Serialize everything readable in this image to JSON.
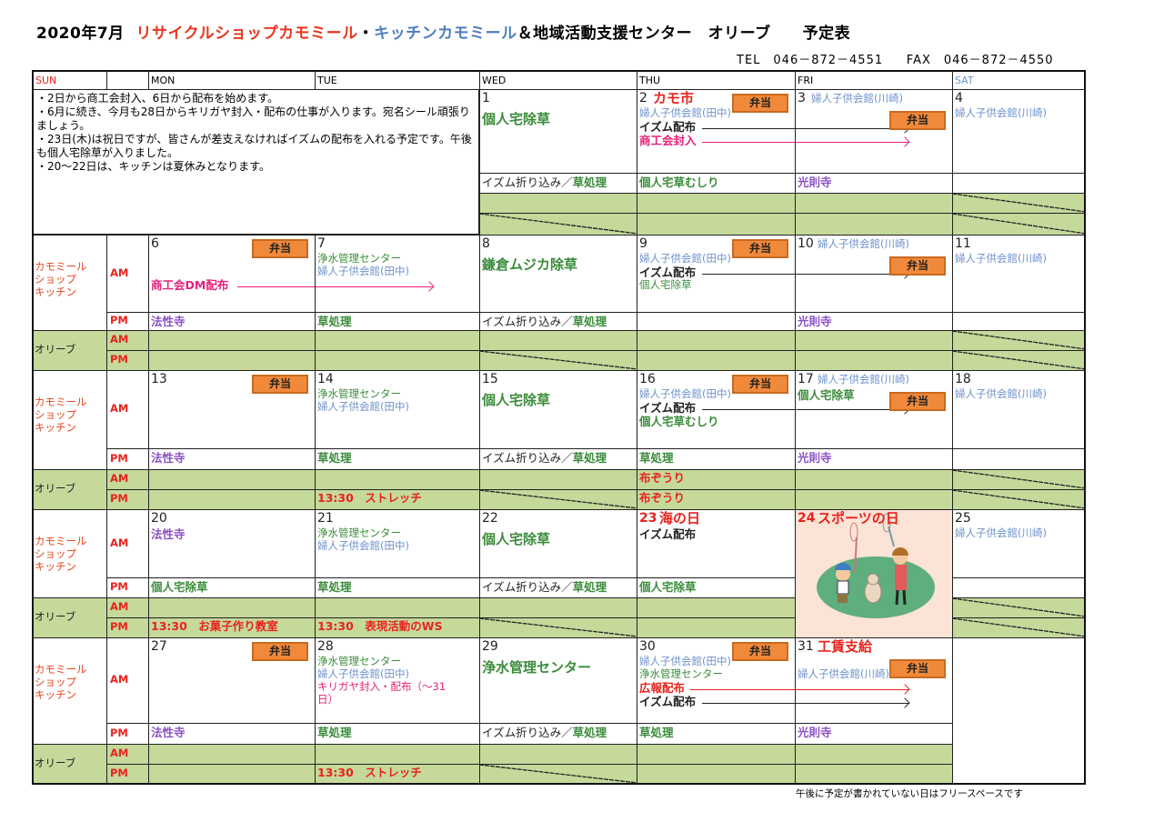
{
  "title": {
    "date": "2020年7月",
    "shop": "リサイクルショップカモミール",
    "dot": "・",
    "kitchen": "キッチンカモミール",
    "rest": "＆地域活動支援センター　オリーブ　　予定表"
  },
  "contact": {
    "tel": "TEL　046－872－4551",
    "fax": "FAX　046－872－4550"
  },
  "colors": {
    "black": "#222222",
    "green": "#3b8c3b",
    "blue": "#6f93cc",
    "pink": "#e8207a",
    "red": "#e8231e",
    "purple": "#8a52c2",
    "orange": "#f0893a",
    "olive": "#c5d99b",
    "holiday_bg": "#fbe3d5"
  },
  "header": {
    "sun": "SUN",
    "mon": "MON",
    "tue": "TUE",
    "wed": "WED",
    "thu": "THU",
    "fri": "FRI",
    "sat": "SAT"
  },
  "notes": "・2日から商工会封入、6日から配布を始めます。\n・6月に続き、今月も28日からキリガヤ封入・配布の仕事が入ります。宛名シール頑張りましょう。\n・23日(木)は祝日ですが、皆さんが差支えなければイズムの配布を入れる予定です。午後も個人宅除草が入りました。\n・20～22日は、キッチンは夏休みとなります。",
  "labels": {
    "group1": "カモミール\nショップ\nキッチン",
    "group2": "オリーブ",
    "am": "AM",
    "pm": "PM",
    "bento": "弁当"
  },
  "footer": "午後に予定が書かれていない日はフリースペースです",
  "weeks": [
    {
      "days": [
        null,
        null,
        {
          "num": "1",
          "am": [
            {
              "t": "個人宅除草",
              "c": "green",
              "s": "big"
            }
          ],
          "pm": {
            "segs": [
              {
                "t": "イズム折り込み／",
                "c": "black"
              },
              {
                "t": "草処理",
                "c": "green"
              }
            ]
          },
          "olive_closed": [
            "pm"
          ]
        },
        {
          "num": "2",
          "title": {
            "t": "カモ市",
            "c": "red"
          },
          "bento": 1,
          "am": [
            {
              "t": "婦人子供会館(田中)",
              "c": "blue",
              "s": "small"
            },
            {
              "t": "イズム配布",
              "c": "black",
              "s": "med",
              "arrow_until": "FRI"
            },
            {
              "t": "商工会封入",
              "c": "pink",
              "s": "med",
              "arrow_until": "FRI"
            }
          ],
          "pm": {
            "segs": [
              {
                "t": "個人宅草むしり",
                "c": "green"
              }
            ]
          }
        },
        {
          "num": "3",
          "title": {
            "t": "婦人子供会館(川崎)",
            "c": "blue",
            "small": true
          },
          "bento": 2,
          "pm": {
            "segs": [
              {
                "t": "光則寺",
                "c": "purple"
              }
            ]
          }
        },
        {
          "num": "4",
          "am": [
            {
              "t": "婦人子供会館(川崎)",
              "c": "blue",
              "s": "small"
            }
          ],
          "olive_closed": [
            "am",
            "pm"
          ]
        }
      ]
    },
    {
      "days": [
        {
          "num": "6",
          "bento": 1,
          "am": [
            {
              "t": "",
              "s": "small"
            },
            {
              "t": "",
              "s": "small"
            },
            {
              "t": "商工会DM配布",
              "c": "pink",
              "s": "med",
              "arrow_until": "TUE"
            }
          ],
          "pm": {
            "segs": [
              {
                "t": "法性寺",
                "c": "purple"
              }
            ]
          }
        },
        {
          "num": "7",
          "am": [
            {
              "t": "浄水管理センター",
              "c": "green",
              "s": "small"
            },
            {
              "t": "婦人子供会館(田中)",
              "c": "blue",
              "s": "small"
            }
          ],
          "pm": {
            "segs": [
              {
                "t": "草処理",
                "c": "green"
              }
            ]
          }
        },
        {
          "num": "8",
          "am": [
            {
              "t": "鎌倉ムジカ除草",
              "c": "green",
              "s": "big"
            }
          ],
          "pm": {
            "segs": [
              {
                "t": "イズム折り込み／",
                "c": "black"
              },
              {
                "t": "草処理",
                "c": "green"
              }
            ]
          },
          "olive_closed": [
            "pm"
          ]
        },
        {
          "num": "9",
          "bento": 1,
          "am": [
            {
              "t": "婦人子供会館(田中)",
              "c": "blue",
              "s": "small"
            },
            {
              "t": "イズム配布",
              "c": "black",
              "s": "med",
              "arrow_until": "FRI"
            },
            {
              "t": "個人宅除草",
              "c": "green",
              "s": "small"
            }
          ]
        },
        {
          "num": "10",
          "title": {
            "t": "婦人子供会館(川崎)",
            "c": "blue",
            "small": true
          },
          "bento": 2,
          "pm": {
            "segs": [
              {
                "t": "光則寺",
                "c": "purple"
              }
            ]
          }
        },
        {
          "num": "11",
          "am": [
            {
              "t": "婦人子供会館(川崎)",
              "c": "blue",
              "s": "small"
            }
          ],
          "olive_closed": [
            "am",
            "pm"
          ]
        }
      ]
    },
    {
      "days": [
        {
          "num": "13",
          "bento": 1,
          "pm": {
            "segs": [
              {
                "t": "法性寺",
                "c": "purple"
              }
            ]
          }
        },
        {
          "num": "14",
          "am": [
            {
              "t": "浄水管理センター",
              "c": "green",
              "s": "small"
            },
            {
              "t": "婦人子供会館(田中)",
              "c": "blue",
              "s": "small"
            }
          ],
          "pm": {
            "segs": [
              {
                "t": "草処理",
                "c": "green"
              }
            ]
          },
          "olive_pm": {
            "t": "13:30　ストレッチ",
            "c": "red"
          }
        },
        {
          "num": "15",
          "am": [
            {
              "t": "個人宅除草",
              "c": "green",
              "s": "big"
            }
          ],
          "pm": {
            "segs": [
              {
                "t": "イズム折り込み／",
                "c": "black"
              },
              {
                "t": "草処理",
                "c": "green"
              }
            ]
          },
          "olive_closed": [
            "pm"
          ]
        },
        {
          "num": "16",
          "bento": 1,
          "am": [
            {
              "t": "婦人子供会館(田中)",
              "c": "blue",
              "s": "small"
            },
            {
              "t": "イズム配布",
              "c": "black",
              "s": "med",
              "arrow_until": "FRI"
            },
            {
              "t": "個人宅草むしり",
              "c": "green",
              "s": "med"
            }
          ],
          "pm": {
            "segs": [
              {
                "t": "草処理",
                "c": "green"
              }
            ]
          },
          "olive_am": {
            "t": "布ぞうり",
            "c": "red"
          },
          "olive_pm": {
            "t": "布ぞうり",
            "c": "red"
          }
        },
        {
          "num": "17",
          "title": {
            "t": "婦人子供会館(川崎)",
            "c": "blue",
            "small": true
          },
          "bento": 2,
          "am": [
            {
              "t": "個人宅除草",
              "c": "green",
              "s": "med"
            }
          ],
          "pm": {
            "segs": [
              {
                "t": "光則寺",
                "c": "purple"
              }
            ]
          }
        },
        {
          "num": "18",
          "am": [
            {
              "t": "婦人子供会館(川崎)",
              "c": "blue",
              "s": "small"
            }
          ],
          "olive_closed": [
            "am",
            "pm"
          ]
        }
      ]
    },
    {
      "days": [
        {
          "num": "20",
          "am": [
            {
              "t": "法性寺",
              "c": "purple",
              "s": "med"
            }
          ],
          "pm": {
            "segs": [
              {
                "t": "個人宅除草",
                "c": "green"
              }
            ]
          },
          "olive_pm": {
            "t": "13:30　お菓子作り教室",
            "c": "red"
          }
        },
        {
          "num": "21",
          "am": [
            {
              "t": "浄水管理センター",
              "c": "green",
              "s": "small"
            },
            {
              "t": "婦人子供会館(田中)",
              "c": "blue",
              "s": "small"
            }
          ],
          "pm": {
            "segs": [
              {
                "t": "草処理",
                "c": "green"
              }
            ]
          },
          "olive_pm": {
            "t": "13:30　表現活動のWS",
            "c": "red"
          }
        },
        {
          "num": "22",
          "am": [
            {
              "t": "個人宅除草",
              "c": "green",
              "s": "big"
            }
          ],
          "pm": {
            "segs": [
              {
                "t": "イズム折り込み／",
                "c": "black"
              },
              {
                "t": "草処理",
                "c": "green"
              }
            ]
          },
          "olive_closed": [
            "pm"
          ]
        },
        {
          "num": "23",
          "num_color": "red",
          "title": {
            "t": "海の日",
            "c": "red"
          },
          "am": [
            {
              "t": "イズム配布",
              "c": "black",
              "s": "med"
            }
          ],
          "pm": {
            "segs": [
              {
                "t": "個人宅除草",
                "c": "green"
              }
            ]
          }
        },
        {
          "num": "24",
          "num_color": "red",
          "title": {
            "t": "スポーツの日",
            "c": "red"
          },
          "holiday_image": "badminton-illustration"
        },
        {
          "num": "25",
          "am": [
            {
              "t": "婦人子供会館(川崎)",
              "c": "blue",
              "s": "small"
            }
          ],
          "olive_closed": [
            "am",
            "pm"
          ]
        }
      ]
    },
    {
      "days": [
        {
          "num": "27",
          "bento": 1,
          "pm": {
            "segs": [
              {
                "t": "法性寺",
                "c": "purple"
              }
            ]
          }
        },
        {
          "num": "28",
          "am": [
            {
              "t": "浄水管理センター",
              "c": "green",
              "s": "small"
            },
            {
              "t": "婦人子供会館(田中)",
              "c": "blue",
              "s": "small"
            },
            {
              "t": "キリガヤ封入・配布（～31",
              "c": "pink",
              "s": "small"
            },
            {
              "t": "日）",
              "c": "pink",
              "s": "small"
            }
          ],
          "pm": {
            "segs": [
              {
                "t": "草処理",
                "c": "green"
              }
            ]
          },
          "olive_pm": {
            "t": "13:30　ストレッチ",
            "c": "red"
          }
        },
        {
          "num": "29",
          "am": [
            {
              "t": "浄水管理センター",
              "c": "green",
              "s": "big"
            }
          ],
          "pm": {
            "segs": [
              {
                "t": "イズム折り込み／",
                "c": "black"
              },
              {
                "t": "草処理",
                "c": "green"
              }
            ]
          },
          "olive_closed": [
            "pm"
          ]
        },
        {
          "num": "30",
          "bento": 1,
          "am": [
            {
              "t": "婦人子供会館(田中)",
              "c": "blue",
              "s": "small"
            },
            {
              "t": "浄水管理センター",
              "c": "green",
              "s": "small"
            },
            {
              "t": "広報配布",
              "c": "red",
              "s": "med",
              "arrow_until": "FRI"
            },
            {
              "t": "イズム配布",
              "c": "black",
              "s": "med",
              "arrow_until": "FRI"
            }
          ],
          "pm": {
            "segs": [
              {
                "t": "草処理",
                "c": "green"
              }
            ]
          }
        },
        {
          "num": "31",
          "title": {
            "t": "工賃支給",
            "c": "red"
          },
          "bento": 2,
          "am": [
            {
              "t": "",
              "s": "small"
            },
            {
              "t": "婦人子供会館(川崎)",
              "c": "blue",
              "s": "small"
            }
          ],
          "pm": {
            "segs": [
              {
                "t": "光則寺",
                "c": "purple"
              }
            ]
          }
        },
        {
          "blank": true
        }
      ]
    }
  ]
}
